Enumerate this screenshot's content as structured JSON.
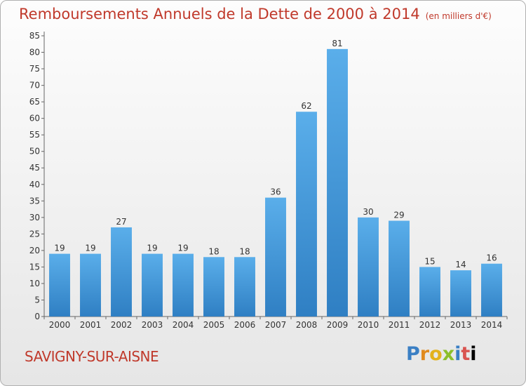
{
  "header": {
    "title": "Remboursements Annuels de la Dette de 2000 à 2014",
    "unit": "(en milliers d'€)"
  },
  "footer": {
    "commune": "SAVIGNY-SUR-AISNE",
    "logo_letters": [
      "P",
      "r",
      "o",
      "x",
      "i",
      "t",
      "i"
    ]
  },
  "colors": {
    "title": "#c0392b",
    "bar_top": "#5aaeea",
    "bar_bottom": "#2f7fc3"
  },
  "chart_data": {
    "type": "bar",
    "title": "Remboursements Annuels de la Dette de 2000 à 2014",
    "subtitle": "(en milliers d'€)",
    "xlabel": "",
    "ylabel": "",
    "categories": [
      "2000",
      "2001",
      "2002",
      "2003",
      "2004",
      "2005",
      "2006",
      "2007",
      "2008",
      "2009",
      "2010",
      "2011",
      "2012",
      "2013",
      "2014"
    ],
    "values": [
      19,
      19,
      27,
      19,
      19,
      18,
      18,
      36,
      62,
      81,
      30,
      29,
      15,
      14,
      16
    ],
    "ylim": [
      0,
      85
    ],
    "yticks": [
      0,
      5,
      10,
      15,
      20,
      25,
      30,
      35,
      40,
      45,
      50,
      55,
      60,
      65,
      70,
      75,
      80,
      85
    ],
    "grid": false,
    "legend": "none"
  }
}
